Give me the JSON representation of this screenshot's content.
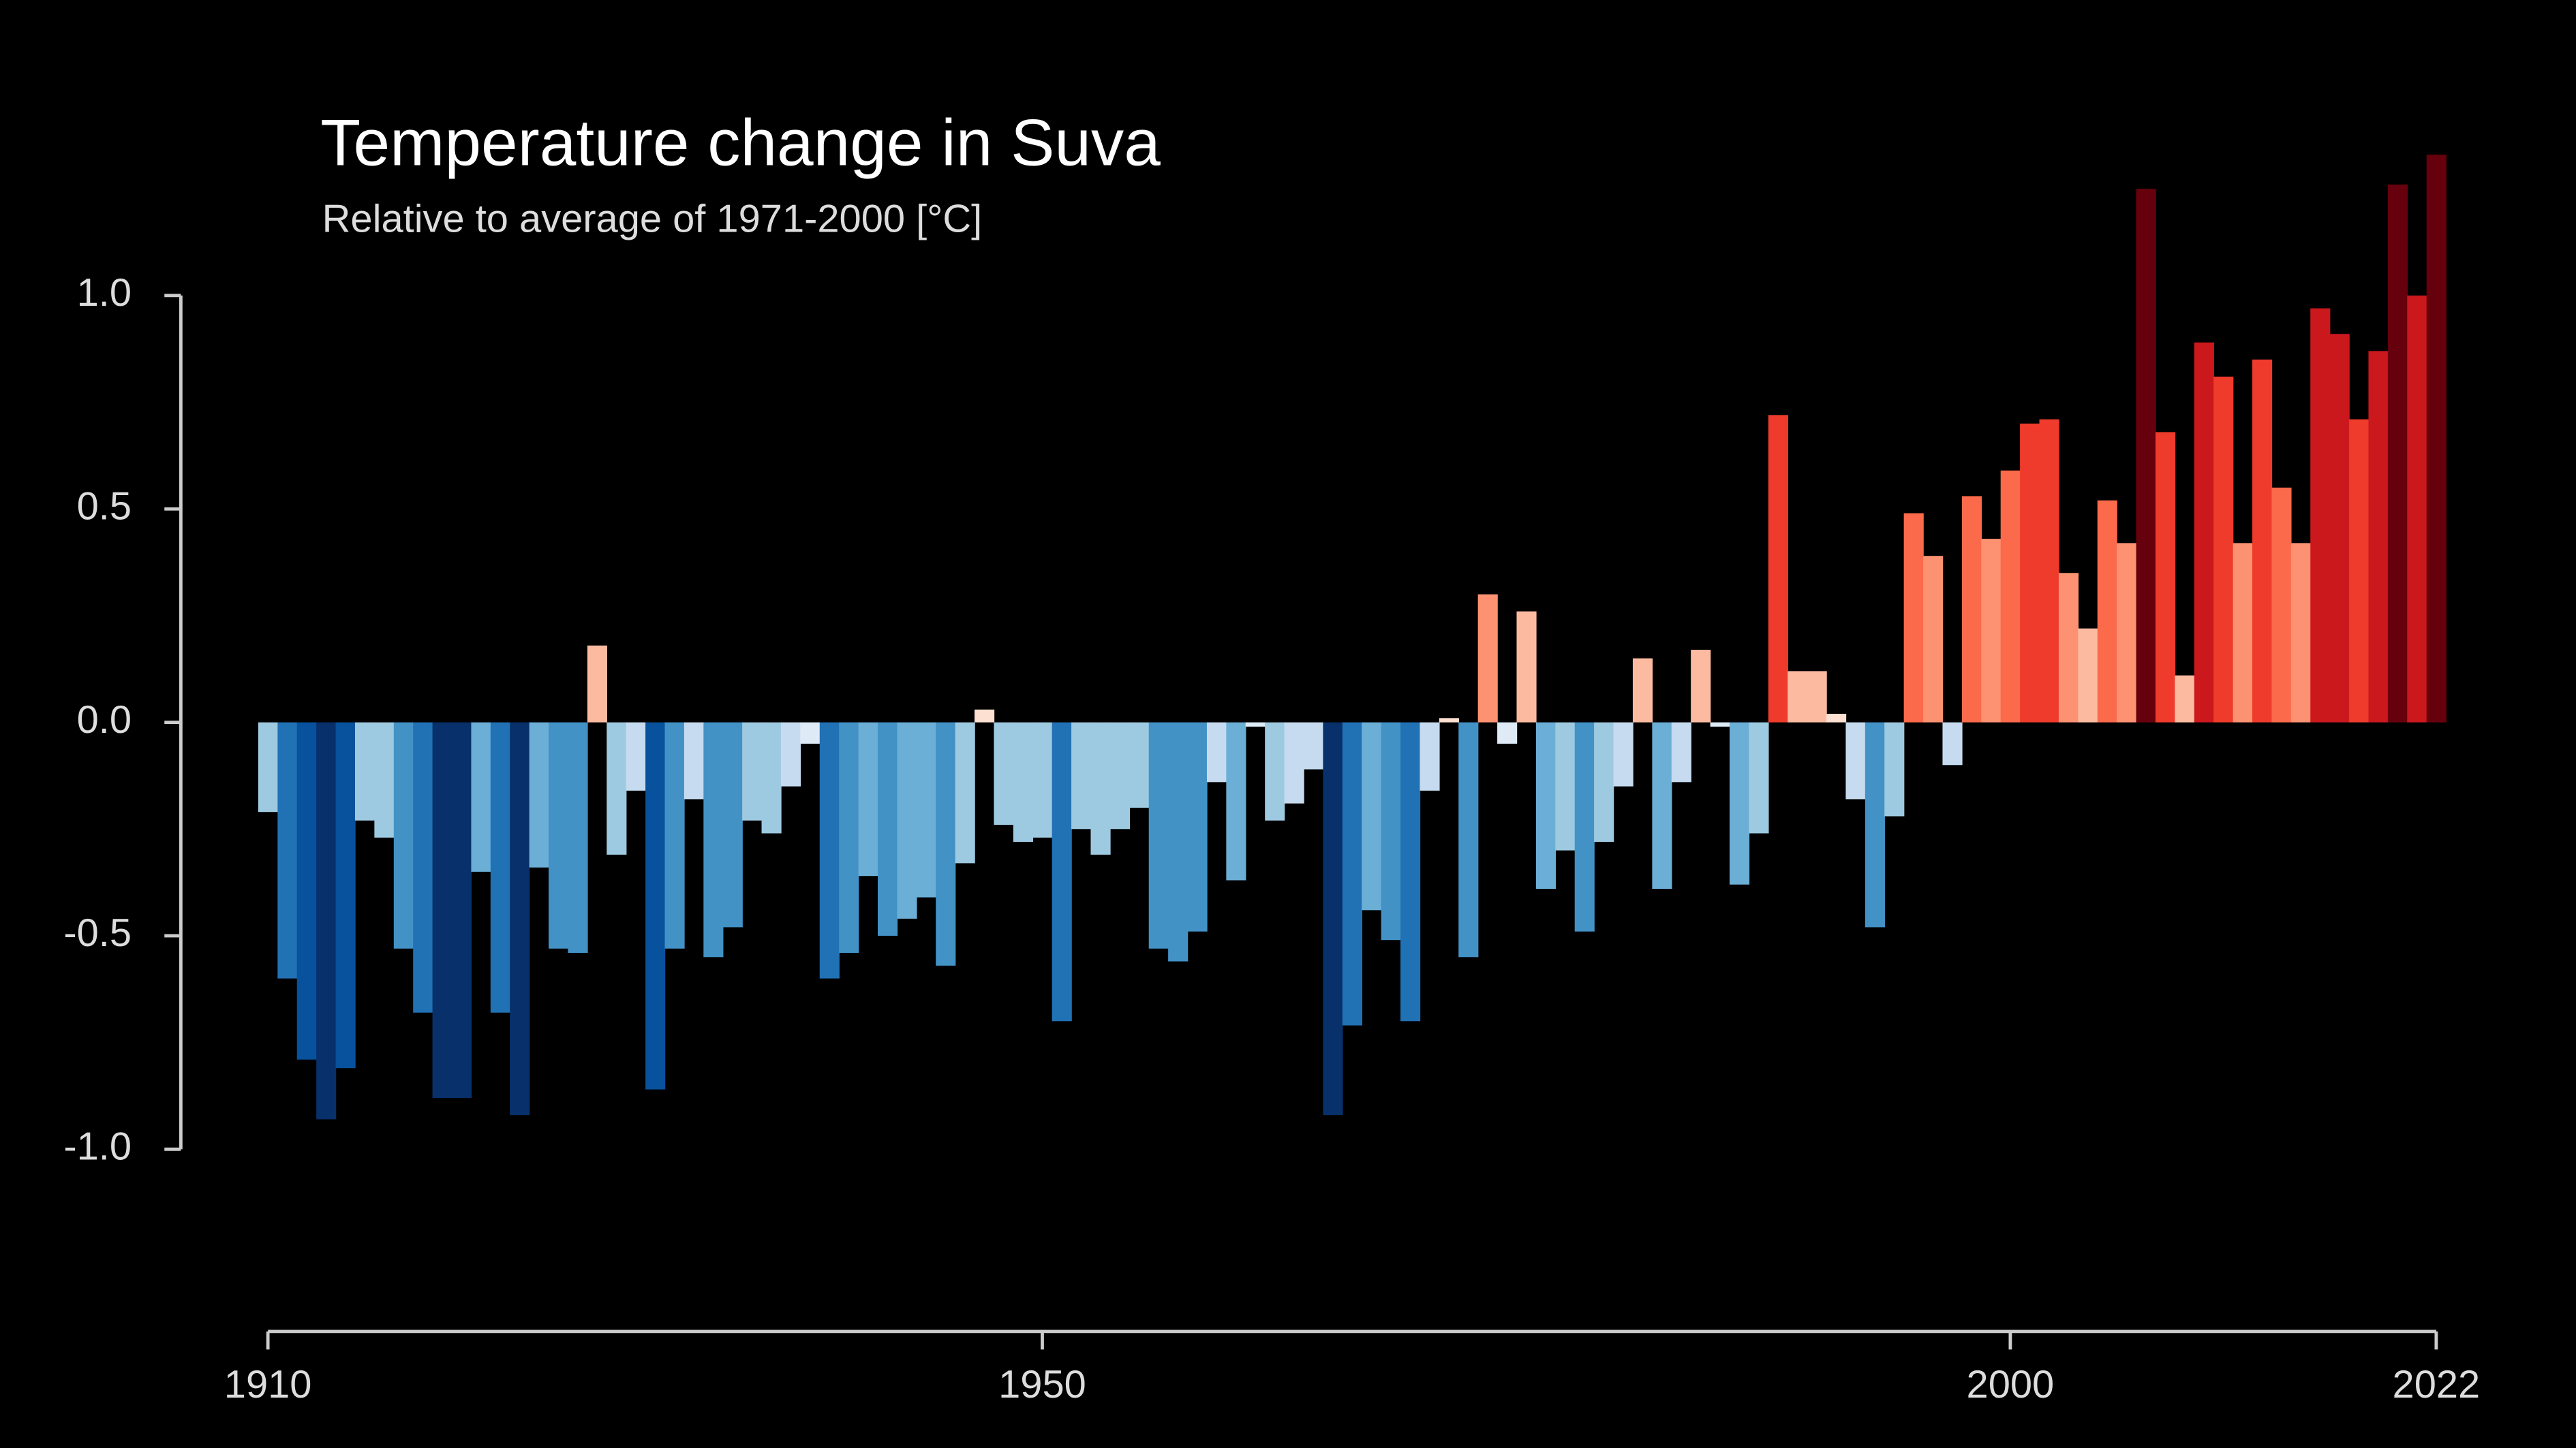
{
  "chart_data": {
    "type": "bar",
    "title": "Temperature change in Suva",
    "subtitle": "Relative to average of 1971-2000  [°C]",
    "x": [
      1910,
      1911,
      1912,
      1913,
      1914,
      1915,
      1916,
      1917,
      1918,
      1919,
      1920,
      1921,
      1922,
      1923,
      1924,
      1925,
      1926,
      1927,
      1928,
      1929,
      1930,
      1931,
      1932,
      1933,
      1934,
      1935,
      1936,
      1937,
      1938,
      1939,
      1940,
      1941,
      1942,
      1943,
      1944,
      1945,
      1946,
      1947,
      1948,
      1949,
      1950,
      1951,
      1952,
      1953,
      1954,
      1955,
      1956,
      1957,
      1958,
      1959,
      1960,
      1961,
      1962,
      1963,
      1964,
      1965,
      1966,
      1967,
      1968,
      1969,
      1970,
      1971,
      1972,
      1973,
      1974,
      1975,
      1976,
      1977,
      1978,
      1979,
      1980,
      1981,
      1982,
      1983,
      1984,
      1985,
      1986,
      1987,
      1988,
      1989,
      1990,
      1991,
      1992,
      1993,
      1994,
      1995,
      1996,
      1997,
      1998,
      1999,
      2000,
      2001,
      2002,
      2003,
      2004,
      2005,
      2006,
      2007,
      2008,
      2009,
      2010,
      2011,
      2012,
      2013,
      2014,
      2015,
      2016,
      2017,
      2018,
      2019,
      2020,
      2021,
      2022
    ],
    "values": [
      -0.21,
      -0.6,
      -0.79,
      -0.93,
      -0.81,
      -0.23,
      -0.27,
      -0.53,
      -0.68,
      -0.88,
      -0.88,
      -0.35,
      -0.68,
      -0.92,
      -0.34,
      -0.53,
      -0.54,
      0.18,
      -0.31,
      -0.16,
      -0.86,
      -0.53,
      -0.18,
      -0.55,
      -0.48,
      -0.23,
      -0.26,
      -0.15,
      -0.05,
      -0.6,
      -0.54,
      -0.36,
      -0.5,
      -0.46,
      -0.41,
      -0.57,
      -0.33,
      0.03,
      -0.24,
      -0.28,
      -0.27,
      -0.7,
      -0.25,
      -0.31,
      -0.25,
      -0.2,
      -0.53,
      -0.56,
      -0.49,
      -0.14,
      -0.37,
      -0.01,
      -0.23,
      -0.19,
      -0.11,
      -0.92,
      -0.71,
      -0.44,
      -0.51,
      -0.7,
      -0.16,
      0.01,
      -0.55,
      0.3,
      -0.05,
      0.26,
      -0.39,
      -0.3,
      -0.49,
      -0.28,
      -0.15,
      0.15,
      -0.39,
      -0.14,
      0.17,
      -0.01,
      -0.38,
      -0.26,
      0.72,
      0.12,
      0.12,
      0.02,
      -0.18,
      -0.48,
      -0.22,
      0.49,
      0.39,
      -0.1,
      0.53,
      0.43,
      0.59,
      0.7,
      0.71,
      0.35,
      0.22,
      0.52,
      0.42,
      1.25,
      0.68,
      0.11,
      0.89,
      0.81,
      0.42,
      0.85,
      0.55,
      0.42,
      0.97,
      0.91,
      0.71,
      0.87,
      1.26,
      1.0,
      1.33
    ],
    "colorscale": [
      "#08306b",
      "#08519c",
      "#2171b5",
      "#4292c6",
      "#6baed6",
      "#9ecae1",
      "#c6dbef",
      "#deebf7",
      "#fee0d2",
      "#fcbba1",
      "#fc9272",
      "#fb6a4a",
      "#ef3b2c",
      "#cb181d",
      "#a50f15",
      "#67000d"
    ],
    "xlim": [
      1910,
      2022
    ],
    "xticks": [
      1910,
      1950,
      2000,
      2022
    ],
    "ylim": [
      -1.4,
      1.4
    ],
    "yticks": [
      {
        "value": 1,
        "label": "1.0"
      },
      0.5,
      {
        "value": 0,
        "label": "0.0"
      },
      -0.5,
      {
        "value": -1,
        "label": "-1.0"
      }
    ]
  }
}
